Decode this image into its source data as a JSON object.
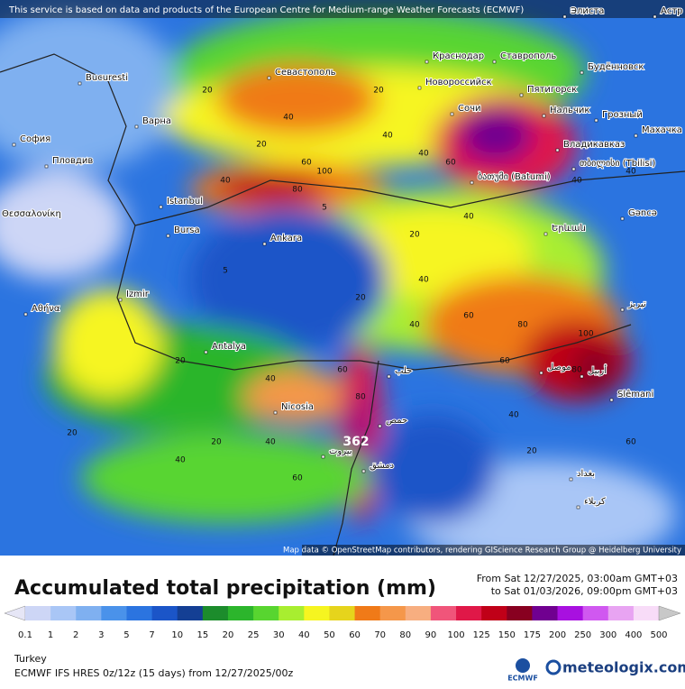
{
  "header": {
    "notice": "This service is based on data and products of the European Centre for Medium-range Weather Forecasts (ECMWF)",
    "attribution": "Map data © OpenStreetMap contributors, rendering GIScience Research Group @ Heidelberg University"
  },
  "map": {
    "region": "Turkey",
    "max_label": "362",
    "cities": [
      "Bucuresti",
      "София",
      "Пловдив",
      "Варна",
      "Istanbul",
      "Bursa",
      "Ankara",
      "Izmir",
      "Αθήνα",
      "Antalya",
      "Nicosia",
      "Севастополь",
      "Краснодар",
      "Ставрополь",
      "Новороссийск",
      "Сочи",
      "Пятигорск",
      "Нальчик",
      "Грозный",
      "Владикавказ",
      "თბილისი (Tbilisi)",
      "ბათუმი (Batumi)",
      "Gəncə",
      "Элиста",
      "Будённовск",
      "Махачка",
      "Slêmani",
      "Θεσσαλονίκη",
      "حلب",
      "حمص",
      "بيروت",
      "دمشق",
      "بغداد",
      "كربلاء",
      "موصل",
      "أربيل",
      "تبريز",
      "Երևան",
      "Астр"
    ],
    "contour_labels": [
      20,
      40,
      20,
      40,
      60,
      80,
      100,
      40,
      20,
      5,
      40,
      60,
      40,
      20,
      40,
      60,
      80,
      100,
      80,
      60,
      40,
      20,
      20,
      5,
      40,
      60,
      80,
      40,
      20,
      40,
      60,
      40,
      20,
      40,
      40,
      20,
      60
    ]
  },
  "legend": {
    "title": "Accumulated total precipitation (mm)",
    "from": "From Sat 12/27/2025, 03:00am GMT+03",
    "to": "to Sat 01/03/2026, 09:00pm GMT+03",
    "ticks": [
      0.1,
      1,
      2,
      3,
      5,
      7,
      10,
      15,
      20,
      25,
      30,
      40,
      50,
      60,
      70,
      80,
      90,
      100,
      125,
      150,
      175,
      200,
      250,
      300,
      400,
      500
    ],
    "colors": [
      "#e6e6f6",
      "#cdd6f6",
      "#a9c6f6",
      "#7fb0f0",
      "#4a92ea",
      "#2b74e0",
      "#1b55c8",
      "#143f94",
      "#1c8c2c",
      "#2cb52c",
      "#58d530",
      "#a8ee30",
      "#f6f520",
      "#e6d41c",
      "#f07a18",
      "#f5974a",
      "#f7ae80",
      "#f0557a",
      "#e01848",
      "#c00018",
      "#880020",
      "#700090",
      "#a810e0",
      "#d058f0",
      "#e8a4f2",
      "#f8dcf8",
      "#c8c8c8"
    ]
  },
  "footer": {
    "model": "ECMWF IFS HRES 0z/12z (15 days) from 12/27/2025/00z",
    "logo_left": "ECMWF",
    "logo_right": "meteologix.com"
  }
}
